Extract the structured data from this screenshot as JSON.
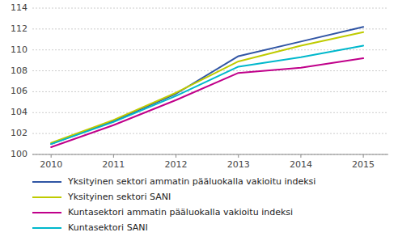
{
  "chart_data": {
    "type": "line",
    "x": [
      2010,
      2011,
      2012,
      2013,
      2014,
      2015
    ],
    "series": [
      {
        "name": "Yksityinen sektori ammatin pääluokalla vakioitu indeksi",
        "color": "#3055A4",
        "values": [
          101.0,
          103.2,
          105.8,
          109.4,
          110.8,
          112.2
        ]
      },
      {
        "name": "Yksityinen sektori SANI",
        "color": "#BFCB00",
        "values": [
          101.1,
          103.3,
          105.9,
          108.9,
          110.4,
          111.7
        ]
      },
      {
        "name": "Kuntasektori ammatin pääluokalla vakioitu indeksi",
        "color": "#C0008A",
        "values": [
          100.7,
          102.8,
          105.2,
          107.8,
          108.3,
          109.2
        ]
      },
      {
        "name": "Kuntasektori SANI",
        "color": "#00B8CC",
        "values": [
          101.0,
          103.1,
          105.6,
          108.4,
          109.3,
          110.4
        ]
      }
    ],
    "xlim": [
      2009.7,
      2015.4
    ],
    "xticks": [
      2010,
      2011,
      2012,
      2013,
      2014,
      2015
    ],
    "ylim": [
      100,
      114
    ],
    "yticks": [
      100,
      102,
      104,
      106,
      108,
      110,
      112,
      114
    ],
    "grid": true,
    "legend": "bottom"
  }
}
